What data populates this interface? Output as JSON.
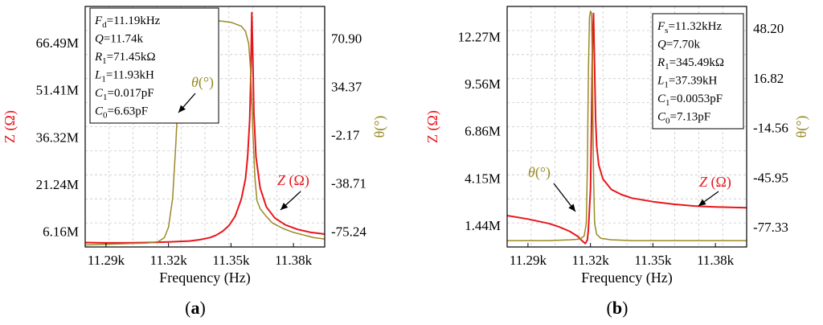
{
  "colors": {
    "impedance": "#e8161b",
    "phase": "#9a8a26",
    "grid": "#c8c8c8",
    "axis": "#000000"
  },
  "chart_data": [
    {
      "type": "line",
      "panel_label": "(a)",
      "panel_letter": "a",
      "xlabel": "Frequency (Hz)",
      "ylabel_left": "Z (Ω)",
      "ylabel_right": "θ(°)",
      "xlim": [
        11.28,
        11.395
      ],
      "x_ticks": [
        11.29,
        11.32,
        11.35,
        11.38
      ],
      "x_tick_labels": [
        "11.29k",
        "11.32k",
        "11.35k",
        "11.38k"
      ],
      "y_left_lim": [
        1.2,
        78
      ],
      "y_left_ticks": [
        6.16,
        21.24,
        36.32,
        51.41,
        66.49
      ],
      "y_left_tick_labels": [
        "6.16M",
        "21.24M",
        "36.32M",
        "51.41M",
        "66.49M"
      ],
      "y_right_lim": [
        -87,
        95
      ],
      "y_right_ticks": [
        -75.24,
        -38.71,
        -2.17,
        34.37,
        70.9
      ],
      "y_right_tick_labels": [
        "-75.24",
        "-38.71",
        "-2.17",
        "34.37",
        "70.90"
      ],
      "grid": true,
      "info_box": [
        "F_d=11.19kHz",
        "Q=11.74k",
        "R_1=71.45kΩ",
        "L_1=11.93kH",
        "C_1=0.017pF",
        "C_0=6.63pF"
      ],
      "info_lines": [
        {
          "sym": "F",
          "sub": "d",
          "val": "=11.19kHz"
        },
        {
          "sym": "Q",
          "sub": "",
          "val": "=11.74k"
        },
        {
          "sym": "R",
          "sub": "1",
          "val": "=71.45kΩ"
        },
        {
          "sym": "L",
          "sub": "1",
          "val": "=11.93kH"
        },
        {
          "sym": "C",
          "sub": "1",
          "val": "=0.017pF"
        },
        {
          "sym": "C",
          "sub": "0",
          "val": "=6.63pF"
        }
      ],
      "annotations": [
        {
          "text": "θ(°)",
          "series": "phase"
        },
        {
          "text": "Z (Ω)",
          "series": "impedance"
        }
      ],
      "series": [
        {
          "key": "impedance",
          "axis": "left",
          "x": [
            11.28,
            11.29,
            11.3,
            11.31,
            11.32,
            11.33,
            11.335,
            11.34,
            11.343,
            11.346,
            11.349,
            11.352,
            11.355,
            11.357,
            11.358,
            11.359,
            11.3595,
            11.36,
            11.3605,
            11.361,
            11.362,
            11.364,
            11.367,
            11.371,
            11.376,
            11.382,
            11.388,
            11.395
          ],
          "y": [
            2.6,
            2.5,
            2.5,
            2.6,
            2.8,
            3.1,
            3.5,
            4.2,
            5.0,
            6.2,
            8.0,
            11.0,
            16.5,
            23.0,
            30.0,
            42.0,
            55.0,
            76.0,
            62.0,
            44.0,
            30.0,
            20.0,
            14.0,
            10.5,
            8.3,
            6.8,
            5.9,
            5.3
          ]
        },
        {
          "key": "phase",
          "axis": "right",
          "x": [
            11.28,
            11.29,
            11.3,
            11.31,
            11.315,
            11.318,
            11.32,
            11.322,
            11.3235,
            11.325,
            11.3265,
            11.328,
            11.33,
            11.335,
            11.34,
            11.345,
            11.35,
            11.355,
            11.357,
            11.3585,
            11.3595,
            11.3605,
            11.3615,
            11.3625,
            11.364,
            11.367,
            11.37,
            11.375,
            11.38,
            11.385,
            11.39,
            11.395
          ],
          "y": [
            -85.5,
            -85.0,
            -84.5,
            -84.0,
            -83.0,
            -80.0,
            -72.0,
            -50.0,
            -10.0,
            40.0,
            72.0,
            80.0,
            82.0,
            83.0,
            84.0,
            84.0,
            83.0,
            80.0,
            76.0,
            67.0,
            45.0,
            0.0,
            -35.0,
            -52.0,
            -58.0,
            -64.0,
            -69.0,
            -73.0,
            -76.0,
            -78.0,
            -80.0,
            -81.0
          ]
        }
      ]
    },
    {
      "type": "line",
      "panel_label": "(b)",
      "panel_letter": "b",
      "xlabel": "Frequency (Hz)",
      "ylabel_left": "Z (Ω)",
      "ylabel_right": "θ(°)",
      "xlim": [
        11.28,
        11.395
      ],
      "x_ticks": [
        11.29,
        11.32,
        11.35,
        11.38
      ],
      "x_tick_labels": [
        "11.29k",
        "11.32k",
        "11.35k",
        "11.38k"
      ],
      "y_left_lim": [
        0.2,
        14.0
      ],
      "y_left_ticks": [
        1.44,
        4.15,
        6.86,
        9.56,
        12.27
      ],
      "y_left_tick_labels": [
        "1.44M",
        "4.15M",
        "6.86M",
        "9.56M",
        "12.27M"
      ],
      "y_right_lim": [
        -90,
        62
      ],
      "y_right_ticks": [
        -77.33,
        -45.95,
        -14.56,
        16.82,
        48.2
      ],
      "y_right_tick_labels": [
        "-77.33",
        "-45.95",
        "-14.56",
        "16.82",
        "48.20"
      ],
      "grid": true,
      "info_box": [
        "F_s=11.32kHz",
        "Q=7.70k",
        "R_1=345.49kΩ",
        "L_1=37.39kH",
        "C_1=0.0053pF",
        "C_0=7.13pF"
      ],
      "info_lines": [
        {
          "sym": "F",
          "sub": "s",
          "val": "=11.32kHz"
        },
        {
          "sym": "Q",
          "sub": "",
          "val": "=7.70k"
        },
        {
          "sym": "R",
          "sub": "1",
          "val": "=345.49kΩ"
        },
        {
          "sym": "L",
          "sub": "1",
          "val": "=37.39kH"
        },
        {
          "sym": "C",
          "sub": "1",
          "val": "=0.0053pF"
        },
        {
          "sym": "C",
          "sub": "0",
          "val": "=7.13pF"
        }
      ],
      "annotations": [
        {
          "text": "θ(°)",
          "series": "phase"
        },
        {
          "text": "Z (Ω)",
          "series": "impedance"
        }
      ],
      "series": [
        {
          "key": "impedance",
          "axis": "left",
          "x": [
            11.28,
            11.29,
            11.3,
            11.305,
            11.31,
            11.314,
            11.316,
            11.3175,
            11.3185,
            11.319,
            11.32,
            11.3205,
            11.321,
            11.3215,
            11.322,
            11.3225,
            11.323,
            11.324,
            11.326,
            11.33,
            11.335,
            11.34,
            11.35,
            11.36,
            11.37,
            11.38,
            11.395
          ],
          "y": [
            2.0,
            1.8,
            1.55,
            1.35,
            1.1,
            0.8,
            0.55,
            0.4,
            0.6,
            1.2,
            3.5,
            7.0,
            12.0,
            13.6,
            10.5,
            7.5,
            6.0,
            4.9,
            4.1,
            3.5,
            3.2,
            3.0,
            2.8,
            2.65,
            2.55,
            2.5,
            2.45
          ]
        },
        {
          "key": "phase",
          "axis": "right",
          "x": [
            11.28,
            11.29,
            11.3,
            11.31,
            11.315,
            11.317,
            11.318,
            11.3185,
            11.319,
            11.3195,
            11.32,
            11.3205,
            11.321,
            11.3215,
            11.322,
            11.323,
            11.325,
            11.33,
            11.34,
            11.36,
            11.395
          ],
          "y": [
            -86.0,
            -86.0,
            -86.0,
            -85.5,
            -85.0,
            -83.0,
            -75.0,
            -40.0,
            20.0,
            55.0,
            59.0,
            58.0,
            20.0,
            -45.0,
            -75.0,
            -82.0,
            -84.5,
            -85.5,
            -86.0,
            -86.0,
            -86.0
          ]
        }
      ]
    }
  ]
}
